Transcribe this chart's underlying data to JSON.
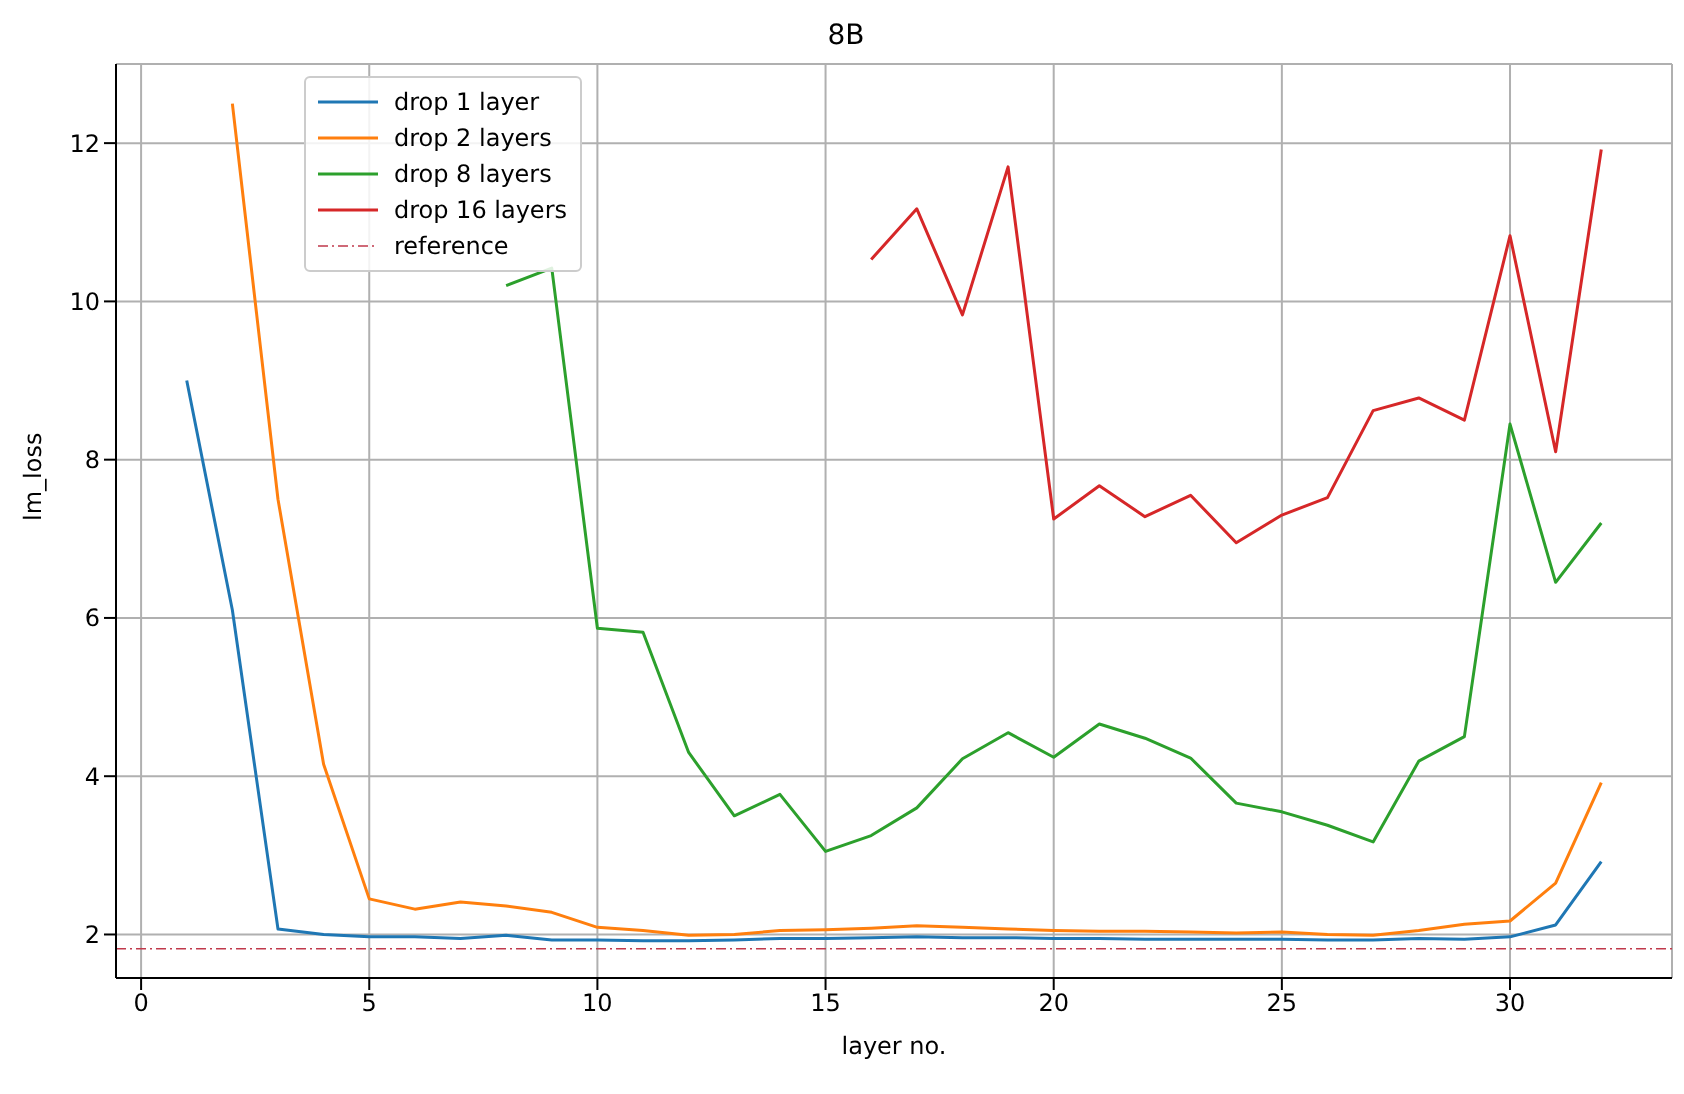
{
  "chart_data": {
    "type": "line",
    "title": "8B",
    "xlabel": "layer no.",
    "ylabel": "lm_loss",
    "x": [
      1,
      2,
      3,
      4,
      5,
      6,
      7,
      8,
      9,
      10,
      11,
      12,
      13,
      14,
      15,
      16,
      17,
      18,
      19,
      20,
      21,
      22,
      23,
      24,
      25,
      26,
      27,
      28,
      29,
      30,
      31,
      32
    ],
    "series": [
      {
        "name": "drop 1 layer",
        "color": "#1f77b4",
        "values": [
          9.0,
          6.1,
          2.07,
          2.0,
          1.97,
          1.97,
          1.95,
          1.99,
          1.93,
          1.93,
          1.92,
          1.92,
          1.93,
          1.95,
          1.95,
          1.96,
          1.97,
          1.96,
          1.96,
          1.95,
          1.95,
          1.94,
          1.94,
          1.94,
          1.94,
          1.93,
          1.93,
          1.95,
          1.94,
          1.97,
          2.12,
          2.92
        ]
      },
      {
        "name": "drop 2 layers",
        "color": "#ff7f0e",
        "values": [
          null,
          12.5,
          7.5,
          4.15,
          2.45,
          2.32,
          2.41,
          2.36,
          2.28,
          2.09,
          2.05,
          1.99,
          2.0,
          2.05,
          2.06,
          2.08,
          2.11,
          2.09,
          2.07,
          2.05,
          2.04,
          2.04,
          2.03,
          2.02,
          2.03,
          2.0,
          1.99,
          2.05,
          2.13,
          2.17,
          2.65,
          3.92
        ]
      },
      {
        "name": "drop 8 layers",
        "color": "#2ca02c",
        "values": [
          null,
          null,
          null,
          null,
          null,
          null,
          null,
          10.2,
          10.42,
          5.87,
          5.82,
          4.3,
          3.5,
          3.77,
          3.05,
          3.25,
          3.6,
          4.22,
          4.55,
          4.24,
          4.66,
          4.48,
          4.23,
          3.66,
          3.55,
          3.38,
          3.17,
          4.19,
          4.5,
          8.45,
          6.45,
          7.2
        ]
      },
      {
        "name": "drop 16 layers",
        "color": "#d62728",
        "values": [
          null,
          null,
          null,
          null,
          null,
          null,
          null,
          null,
          null,
          null,
          null,
          null,
          null,
          null,
          null,
          10.53,
          11.17,
          9.83,
          11.7,
          7.25,
          7.67,
          7.28,
          7.55,
          6.95,
          7.3,
          7.52,
          8.62,
          8.78,
          8.5,
          10.83,
          8.1,
          11.92
        ]
      }
    ],
    "ref_lines": [
      {
        "axis": "y",
        "value": 1.82,
        "label": "reference",
        "color": "#c0394b",
        "line_style": "dashed"
      }
    ],
    "xlim": [
      -0.55,
      33.55
    ],
    "xticks": [
      0,
      5,
      10,
      15,
      20,
      25,
      30
    ],
    "ylim": [
      1.45,
      13
    ],
    "yticks": [
      2,
      4,
      6,
      8,
      10,
      12
    ],
    "grid": true,
    "legend": "top left",
    "marker": "none",
    "line_style": "solid"
  }
}
